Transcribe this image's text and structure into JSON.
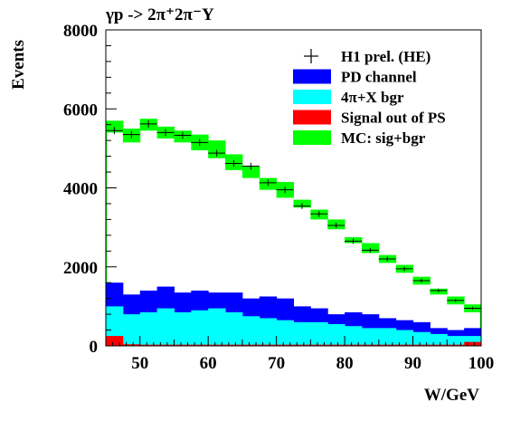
{
  "chart_data": {
    "type": "histogram",
    "title": "γp -> 2π⁺2π⁻Y",
    "xlabel": "W/GeV",
    "ylabel": "Events",
    "xlim": [
      45,
      100
    ],
    "ylim": [
      0,
      8000
    ],
    "xticks": [
      50,
      60,
      70,
      80,
      90,
      100
    ],
    "yticks": [
      0,
      2000,
      4000,
      6000,
      8000
    ],
    "bin_edges": [
      45,
      47.5,
      50,
      52.5,
      55,
      57.5,
      60,
      62.5,
      65,
      67.5,
      70,
      72.5,
      75,
      77.5,
      80,
      82.5,
      85,
      87.5,
      90,
      92.5,
      95,
      97.5,
      100
    ],
    "legend": [
      {
        "label": "H1 prel. (HE)",
        "color": "#000000",
        "style": "marker"
      },
      {
        "label": "PD channel",
        "color": "#0000ff",
        "style": "box"
      },
      {
        "label": "4π+X bgr",
        "color": "#00ffff",
        "style": "box"
      },
      {
        "label": "Signal out of PS",
        "color": "#ff0000",
        "style": "box"
      },
      {
        "label": "MC: sig+bgr",
        "color": "#00ff00",
        "style": "box"
      }
    ],
    "series": [
      {
        "name": "MC: sig+bgr",
        "low": [
          5400,
          5150,
          5450,
          5250,
          5150,
          4950,
          4750,
          4450,
          4250,
          3950,
          3750,
          3500,
          3200,
          2950,
          2600,
          2350,
          2100,
          1850,
          1550,
          1300,
          1050,
          850
        ],
        "high": [
          5700,
          5500,
          5750,
          5550,
          5450,
          5350,
          5200,
          4850,
          4550,
          4250,
          4150,
          3700,
          3450,
          3200,
          2750,
          2600,
          2300,
          2050,
          1750,
          1450,
          1250,
          1050
        ]
      },
      {
        "name": "PD channel",
        "values": [
          1600,
          1300,
          1400,
          1500,
          1350,
          1400,
          1350,
          1350,
          1200,
          1250,
          1200,
          1000,
          950,
          800,
          850,
          800,
          700,
          650,
          600,
          450,
          400,
          450
        ]
      },
      {
        "name": "4π+X bgr",
        "values": [
          1000,
          800,
          850,
          950,
          850,
          900,
          950,
          850,
          750,
          700,
          650,
          600,
          600,
          550,
          500,
          450,
          450,
          400,
          350,
          300,
          250,
          250
        ]
      },
      {
        "name": "Signal out of PS",
        "values": [
          250,
          40,
          30,
          30,
          30,
          30,
          30,
          30,
          30,
          30,
          30,
          30,
          30,
          30,
          30,
          30,
          30,
          30,
          30,
          30,
          30,
          100
        ]
      },
      {
        "name": "H1 prel. (HE)",
        "values": [
          5450,
          5350,
          5620,
          5400,
          5330,
          5150,
          4880,
          4620,
          4550,
          4130,
          3950,
          3540,
          3340,
          3050,
          2650,
          2420,
          2200,
          1950,
          1650,
          1400,
          1150,
          950
        ],
        "errors": [
          90,
          90,
          90,
          90,
          90,
          90,
          85,
          85,
          85,
          80,
          80,
          75,
          75,
          70,
          65,
          60,
          60,
          55,
          50,
          45,
          40,
          40
        ]
      }
    ]
  }
}
